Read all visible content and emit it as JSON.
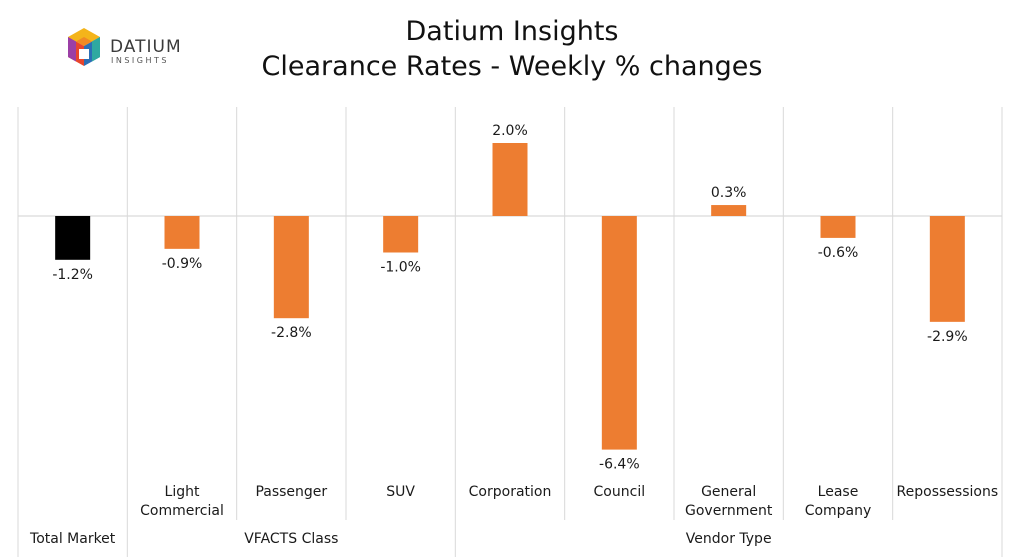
{
  "logo": {
    "brand": "DATIUM",
    "tagline": "INSIGHTS"
  },
  "chart_data": {
    "type": "bar",
    "title": "Datium Insights",
    "subtitle": "Clearance Rates - Weekly % changes",
    "categories": [
      "",
      "Light Commercial",
      "Passenger",
      "SUV",
      "Corporation",
      "Council",
      "General Government",
      "Lease Company",
      "Repossessions"
    ],
    "values": [
      -1.2,
      -0.9,
      -2.8,
      -1.0,
      2.0,
      -6.4,
      0.3,
      -0.6,
      -2.9
    ],
    "data_labels": [
      "-1.2%",
      "-0.9%",
      "-2.8%",
      "-1.0%",
      "2.0%",
      "-6.4%",
      "0.3%",
      "-0.6%",
      "-2.9%"
    ],
    "groups": [
      {
        "label": "Total Market",
        "start": 0,
        "count": 1
      },
      {
        "label": "VFACTS Class",
        "start": 1,
        "count": 3
      },
      {
        "label": "Vendor Type",
        "start": 4,
        "count": 5
      }
    ],
    "colors": [
      "#000000",
      "#ed7d31",
      "#ed7d31",
      "#ed7d31",
      "#ed7d31",
      "#ed7d31",
      "#ed7d31",
      "#ed7d31",
      "#ed7d31"
    ],
    "ylim": [
      -6.8,
      3.0
    ],
    "grid": false,
    "xlabel": "",
    "ylabel": ""
  }
}
